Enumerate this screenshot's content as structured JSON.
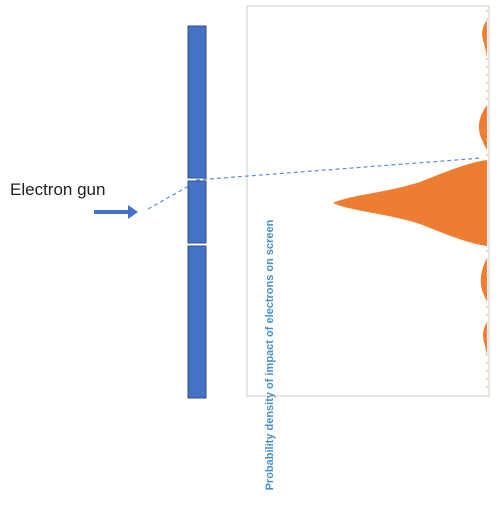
{
  "labels": {
    "source": "Electron gun",
    "screen_axis": "Probability density of impact of electrons on screen"
  },
  "colors": {
    "barrier": "#4472c4",
    "barrier_edge": "#2f4f8a",
    "path": "#5b8fd6",
    "distribution": "#ed7d31",
    "axis_label": "#4a90c8",
    "screen_border": "#cccccc"
  }
}
